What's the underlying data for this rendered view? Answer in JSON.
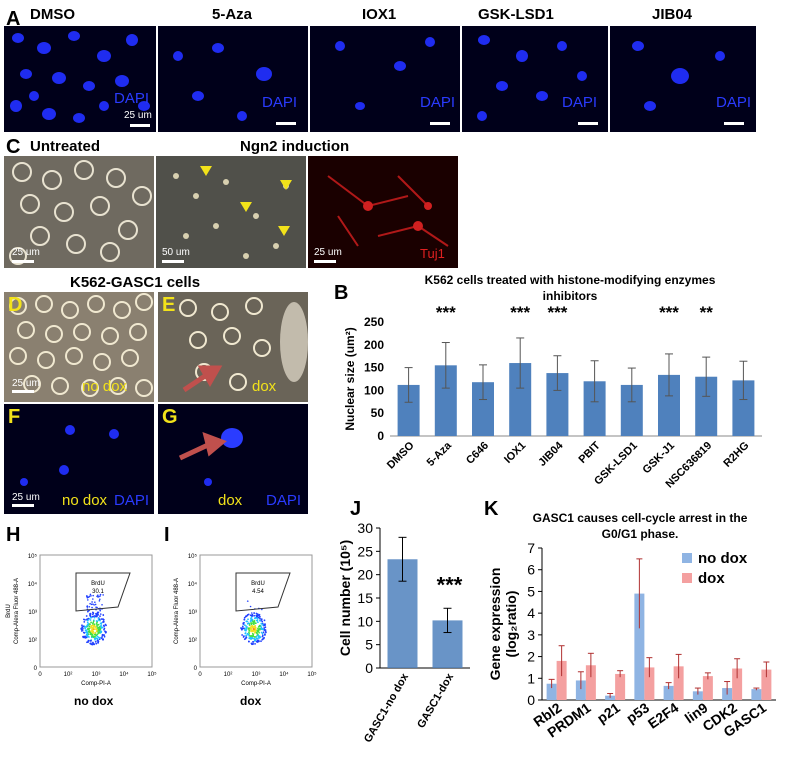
{
  "panelA": {
    "label": "A",
    "titles": [
      "DMSO",
      "5-Aza",
      "IOX1",
      "GSK-LSD1",
      "JIB04"
    ],
    "stain": "DAPI",
    "scale": "25 um"
  },
  "panelC": {
    "label": "C",
    "title_left": "Untreated",
    "title_right": "Ngn2 induction",
    "scale": "25 um",
    "scale_mid": "50 um",
    "stain": "Tuj1"
  },
  "panelDG": {
    "title": "K562-GASC1 cells",
    "labels": [
      "D",
      "E",
      "F",
      "G"
    ],
    "no_dox": "no dox",
    "dox": "dox",
    "stain": "DAPI",
    "scale": "25 um"
  },
  "panelB": {
    "label": "B",
    "chart_data": {
      "type": "bar",
      "title": "K562 cells treated with histone-modifying enzymes inhibitors",
      "ylabel": "Nuclear size (um²)",
      "ylim": [
        0,
        250
      ],
      "yticks": [
        "0",
        "50",
        "100",
        "150",
        "200",
        "250"
      ],
      "categories": [
        "DMSO",
        "5-Aza",
        "C646",
        "IOX1",
        "JIB04",
        "PBIT",
        "GSK-LSD1",
        "GSK-J1",
        "NSC636819",
        "R2HG"
      ],
      "values": [
        112,
        155,
        118,
        160,
        138,
        120,
        112,
        134,
        130,
        122
      ],
      "errors": [
        38,
        50,
        38,
        55,
        38,
        45,
        37,
        46,
        43,
        42
      ],
      "significance": [
        "",
        "***",
        "",
        "***",
        "***",
        "",
        "",
        "***",
        "**",
        ""
      ],
      "color": "#4f81bd"
    }
  },
  "panelH": {
    "label": "H",
    "gate": "BrdU",
    "value": "30.1",
    "xlabel": "Comp-PI-A",
    "ylabel": "Comp-Alexa Fluor 488-A",
    "ylabel_top": "BrdU",
    "condition": "no dox",
    "ticks": [
      "0",
      "10²",
      "10³",
      "10⁴",
      "10⁵"
    ]
  },
  "panelI": {
    "label": "I",
    "gate": "BrdU",
    "value": "4.54",
    "xlabel": "Comp-PI-A",
    "ylabel": "Comp-Alexa Fluor 488-A",
    "condition": "dox",
    "ticks": [
      "0",
      "10²",
      "10³",
      "10⁴",
      "10⁵"
    ]
  },
  "panelJ": {
    "label": "J",
    "chart_data": {
      "type": "bar",
      "ylabel": "Cell number (10⁵)",
      "ylim": [
        0,
        30
      ],
      "yticks": [
        "0",
        "5",
        "10",
        "15",
        "20",
        "25",
        "30"
      ],
      "categories": [
        "GASC1-no dox",
        "GASC1-dox"
      ],
      "values": [
        23.3,
        10.2
      ],
      "errors": [
        4.7,
        2.6
      ],
      "significance": [
        "",
        "***"
      ],
      "color": "#4f81bd"
    }
  },
  "panelK": {
    "label": "K",
    "chart_data": {
      "type": "bar",
      "title": "GASC1 causes cell-cycle arrest in the G0/G1 phase.",
      "ylabel": "Gene expression (log₂ratio)",
      "ylim": [
        0,
        7
      ],
      "yticks": [
        "0",
        "1",
        "2",
        "3",
        "4",
        "5",
        "6",
        "7"
      ],
      "categories": [
        "Rbl2",
        "PRDM1",
        "p21",
        "p53",
        "E2F4",
        "lin9",
        "CDK2",
        "GASC1"
      ],
      "series": [
        {
          "name": "no dox",
          "values": [
            0.75,
            0.9,
            0.2,
            4.9,
            0.65,
            0.4,
            0.55,
            0.5
          ],
          "errors": [
            0.2,
            0.4,
            0.1,
            1.6,
            0.15,
            0.15,
            0.3,
            0.05
          ],
          "color": "#8fb4e3"
        },
        {
          "name": "dox",
          "values": [
            1.8,
            1.6,
            1.2,
            1.5,
            1.55,
            1.1,
            1.45,
            1.4
          ],
          "errors": [
            0.7,
            0.55,
            0.15,
            0.45,
            0.55,
            0.15,
            0.45,
            0.35
          ],
          "color": "#f4a0a0"
        }
      ],
      "legend": "top-right"
    }
  }
}
